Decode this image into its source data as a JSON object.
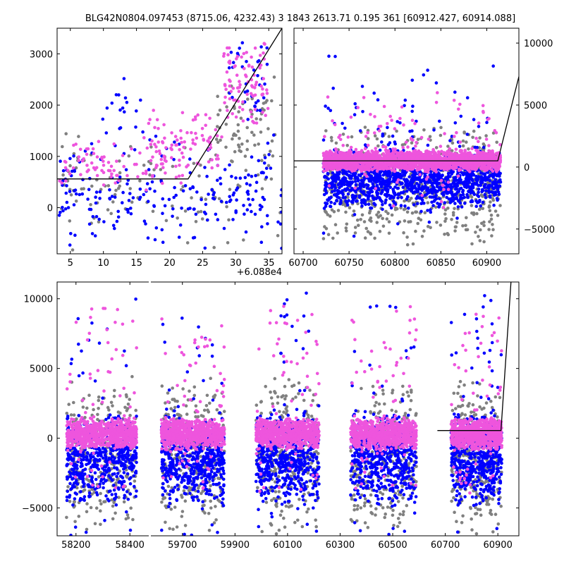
{
  "title": "BLG42N0804.097453 (8715.06, 4232.43)    3 1843 2613.71 0.195 361 [60912.427, 60914.088]",
  "colors": {
    "grey": "#808080",
    "blue": "#0000ff",
    "pink": "#ee55dd",
    "line": "#000000"
  },
  "chart_data": [
    {
      "id": "top-left",
      "type": "scatter",
      "xlim": [
        3,
        37
      ],
      "ylim": [
        -900,
        3500
      ],
      "xticks": [
        5,
        10,
        15,
        20,
        25,
        30,
        35
      ],
      "yticks": [
        0,
        1000,
        2000,
        3000
      ],
      "xtick_labels": [
        "5",
        "10",
        "15",
        "20",
        "25",
        "30",
        "35"
      ],
      "ytick_labels": [
        "0",
        "1000",
        "2000",
        "3000"
      ],
      "offset_label": "+6.088e4",
      "model": {
        "x": [
          3,
          22.8,
          37
        ],
        "y": [
          560,
          560,
          3500
        ]
      },
      "series": [
        {
          "color": "grey",
          "seed": 11,
          "clusters": [
            {
              "x": [
                3,
                37
              ],
              "y": [
                -900,
                1600
              ],
              "n": 110
            },
            {
              "x": [
                27,
                36
              ],
              "y": [
                500,
                2600
              ],
              "n": 60
            }
          ]
        },
        {
          "color": "blue",
          "seed": 23,
          "clusters": [
            {
              "x": [
                3,
                37
              ],
              "y": [
                -900,
                1500
              ],
              "n": 230
            },
            {
              "x": [
                9,
                16
              ],
              "y": [
                1300,
                2600
              ],
              "n": 18
            },
            {
              "x": [
                29,
                35
              ],
              "y": [
                1600,
                3400
              ],
              "n": 35
            }
          ]
        },
        {
          "color": "pink",
          "seed": 37,
          "clusters": [
            {
              "x": [
                3,
                22
              ],
              "y": [
                300,
                1400
              ],
              "n": 90
            },
            {
              "x": [
                16,
                28
              ],
              "y": [
                500,
                2000
              ],
              "n": 80
            },
            {
              "x": [
                28,
                35
              ],
              "y": [
                1500,
                3300
              ],
              "n": 90
            }
          ]
        }
      ]
    },
    {
      "id": "top-right",
      "type": "scatter",
      "xlim": [
        60690,
        60935
      ],
      "ylim": [
        -7000,
        11200
      ],
      "xticks": [
        60700,
        60750,
        60800,
        60850,
        60900
      ],
      "yticks": [
        -5000,
        0,
        5000,
        10000
      ],
      "xtick_labels": [
        "60700",
        "60750",
        "60800",
        "60850",
        "60900"
      ],
      "ytick_labels": [
        "−5000",
        "0",
        "5000",
        "10000"
      ],
      "model": {
        "x": [
          60690,
          60912,
          60935
        ],
        "y": [
          500,
          500,
          7300
        ]
      },
      "series": [
        {
          "color": "grey",
          "seed": 41,
          "clusters": [
            {
              "x": [
                60722,
                60915
              ],
              "y": [
                -6500,
                3500
              ],
              "n": 650
            }
          ]
        },
        {
          "color": "blue",
          "seed": 53,
          "clusters": [
            {
              "x": [
                60722,
                60915
              ],
              "y": [
                -3500,
                1600
              ],
              "n": 1300
            },
            {
              "x": [
                60722,
                60915
              ],
              "y": [
                -6500,
                10500
              ],
              "n": 120
            }
          ]
        },
        {
          "color": "pink",
          "seed": 67,
          "clusters": [
            {
              "x": [
                60722,
                60915
              ],
              "y": [
                -400,
                1400
              ],
              "n": 1800
            },
            {
              "x": [
                60722,
                60915
              ],
              "y": [
                -4000,
                6500
              ],
              "n": 160
            }
          ]
        }
      ]
    },
    {
      "id": "bottom",
      "type": "scatter",
      "segments": [
        {
          "xlim": [
            58130,
            58470
          ],
          "xticks": [
            58200,
            58400
          ],
          "xtick_labels": [
            "58200",
            "58400"
          ]
        },
        {
          "xlim": [
            59580,
            60980
          ],
          "xticks": [
            59700,
            59900,
            60100,
            60300,
            60500,
            60700,
            60900
          ],
          "xtick_labels": [
            "59700",
            "59900",
            "60100",
            "60300",
            "60500",
            "60700",
            "60900"
          ]
        }
      ],
      "ylim": [
        -7000,
        11200
      ],
      "yticks": [
        -5000,
        0,
        5000,
        10000
      ],
      "ytick_labels": [
        "−5000",
        "0",
        "5000",
        "10000"
      ],
      "model": {
        "x": [
          60670,
          60912,
          60950
        ],
        "y": [
          550,
          550,
          11200
        ]
      },
      "seasons": [
        {
          "x": [
            58165,
            58425
          ]
        },
        {
          "x": [
            59620,
            59860
          ]
        },
        {
          "x": [
            59980,
            60220
          ]
        },
        {
          "x": [
            60340,
            60590
          ]
        },
        {
          "x": [
            60722,
            60915
          ]
        }
      ],
      "series": [
        {
          "color": "grey",
          "seed": 71,
          "n_per_season": 300,
          "y": [
            -7000,
            4500
          ]
        },
        {
          "color": "blue",
          "seed": 83,
          "n_per_season": 520,
          "y": [
            -5000,
            2000
          ],
          "outliers": 40,
          "outlier_y": [
            -7000,
            10500
          ]
        },
        {
          "color": "pink",
          "seed": 97,
          "n_per_season": 700,
          "y": [
            -900,
            1500
          ],
          "outliers": 60,
          "outlier_y": [
            -4000,
            9500
          ]
        }
      ]
    }
  ]
}
